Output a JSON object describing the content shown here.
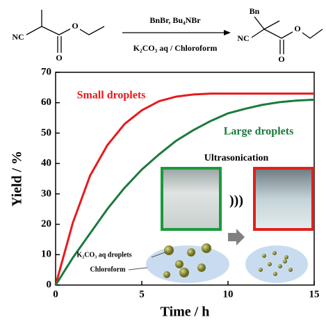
{
  "scheme": {
    "reagents_top": "BnBr, Bu₄NBr",
    "reagents_bottom": "K₂CO₃ aq / Chloroform",
    "reactant_labels": [
      "NC",
      "O",
      "O"
    ],
    "product_labels": [
      "Bn",
      "NC",
      "O",
      "O"
    ]
  },
  "chart_data": {
    "type": "line",
    "x_label": "Time / h",
    "y_label": "Yield / %",
    "x": [
      0,
      1,
      2,
      3,
      4,
      5,
      6,
      7,
      8,
      9,
      10,
      11,
      12,
      13,
      14,
      15
    ],
    "series": [
      {
        "name": "Small droplets",
        "color": "#e8191c",
        "values": [
          0,
          20.5,
          36,
          46,
          53,
          57.5,
          60.5,
          62,
          62.7,
          63,
          63,
          63,
          63,
          63,
          63,
          63
        ]
      },
      {
        "name": "Large droplets",
        "color": "#1a7a3c",
        "values": [
          0,
          9,
          17,
          25,
          32,
          38,
          43,
          47.5,
          51,
          54,
          56.5,
          58,
          59.3,
          60.2,
          60.7,
          61
        ]
      }
    ],
    "xlim": [
      0,
      15
    ],
    "xticks": [
      0,
      5,
      10,
      15
    ],
    "ylim": [
      0,
      70
    ],
    "yticks": [
      0,
      10,
      20,
      30,
      40,
      50,
      60,
      70
    ],
    "annotations": {
      "process": "Ultrasonication",
      "droplet_label": "K₂CO₃ aq droplets",
      "solvent_label": "Chloroform"
    }
  }
}
